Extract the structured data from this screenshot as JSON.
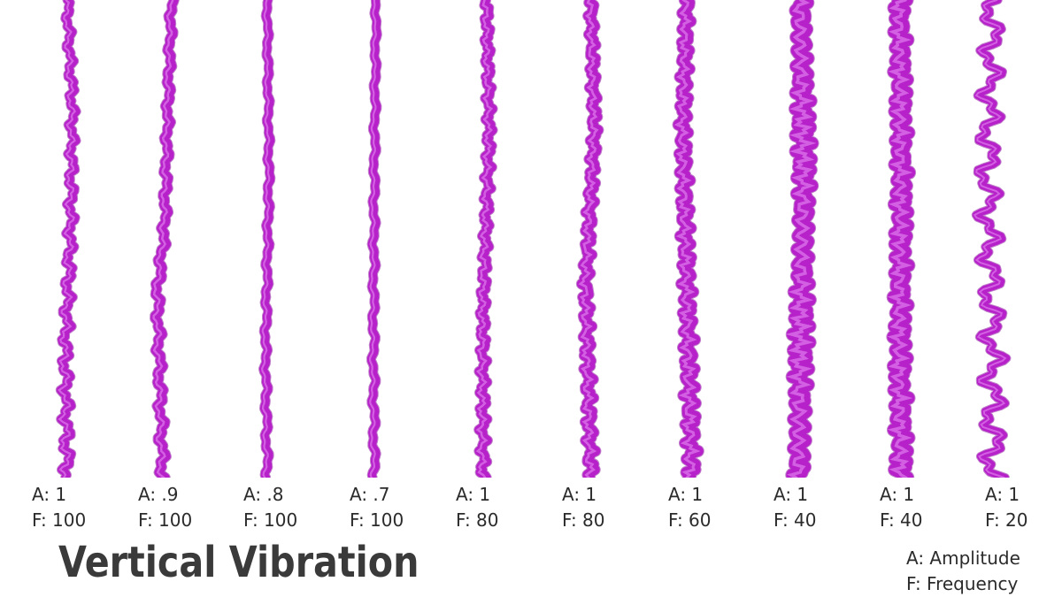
{
  "accent_color": "#b621c9",
  "strands": [
    {
      "amplitude": "A: 1",
      "frequency": "F: 100"
    },
    {
      "amplitude": "A: .9",
      "frequency": "F: 100"
    },
    {
      "amplitude": "A: .8",
      "frequency": "F: 100"
    },
    {
      "amplitude": "A: .7",
      "frequency": "F: 100"
    },
    {
      "amplitude": "A: 1",
      "frequency": "F: 80"
    },
    {
      "amplitude": "A: 1",
      "frequency": "F: 80"
    },
    {
      "amplitude": "A: 1",
      "frequency": "F: 60"
    },
    {
      "amplitude": "A: 1",
      "frequency": "F: 40"
    },
    {
      "amplitude": "A: 1",
      "frequency": "F: 40"
    },
    {
      "amplitude": "A: 1",
      "frequency": "F: 20"
    }
  ],
  "title": "Vertical Vibration",
  "legend": {
    "amplitude": "A: Amplitude",
    "frequency": "F: Frequency"
  }
}
